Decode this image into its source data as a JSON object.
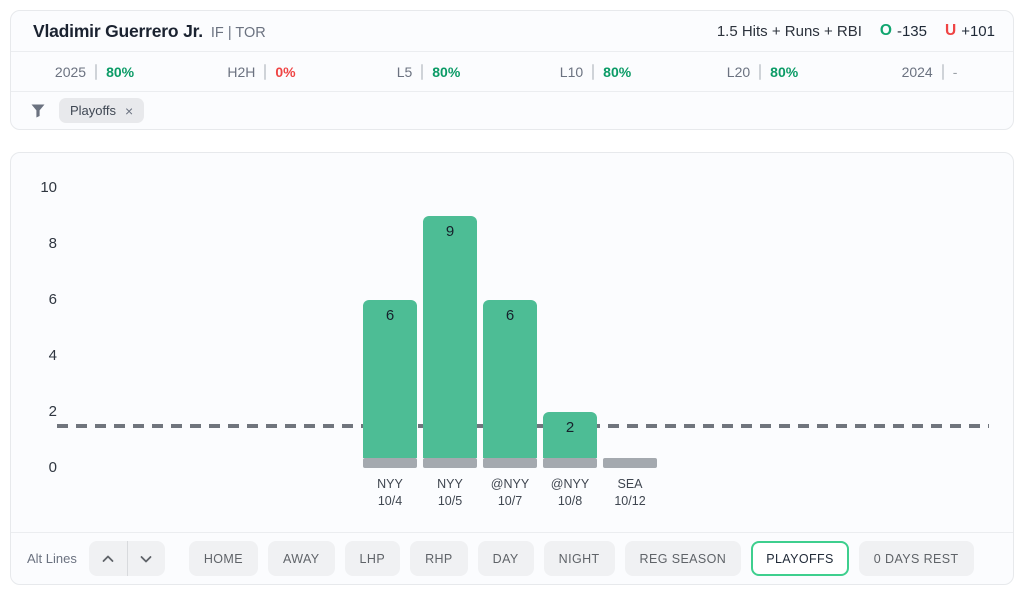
{
  "header": {
    "player_name": "Vladimir Guerrero Jr.",
    "position_team": "IF | TOR",
    "prop_label": "1.5 Hits + Runs + RBI",
    "over": {
      "symbol": "O",
      "odds": "-135"
    },
    "under": {
      "symbol": "U",
      "odds": "+101"
    }
  },
  "stats": [
    {
      "label": "2025",
      "value": "80%",
      "status": "positive"
    },
    {
      "label": "H2H",
      "value": "0%",
      "status": "negative"
    },
    {
      "label": "L5",
      "value": "80%",
      "status": "positive"
    },
    {
      "label": "L10",
      "value": "80%",
      "status": "positive"
    },
    {
      "label": "L20",
      "value": "80%",
      "status": "positive"
    },
    {
      "label": "2024",
      "value": "-",
      "status": "neutral"
    }
  ],
  "filter_bar": {
    "chips": [
      {
        "label": "Playoffs",
        "close": "×"
      }
    ]
  },
  "chart_data": {
    "type": "bar",
    "title": "",
    "xlabel": "",
    "ylabel": "",
    "categories": [
      "NYY 10/4",
      "NYY 10/5",
      "@NYY 10/7",
      "@NYY 10/8",
      "SEA 10/12"
    ],
    "games": [
      {
        "opponent": "NYY",
        "date": "10/4",
        "value": 6
      },
      {
        "opponent": "NYY",
        "date": "10/5",
        "value": 9
      },
      {
        "opponent": "@NYY",
        "date": "10/7",
        "value": 6
      },
      {
        "opponent": "@NYY",
        "date": "10/8",
        "value": 2
      },
      {
        "opponent": "SEA",
        "date": "10/12",
        "value": 0
      }
    ],
    "values": [
      6,
      9,
      6,
      2,
      0
    ],
    "prop_line": 1.5,
    "yticks": [
      10,
      8,
      6,
      4,
      2,
      0
    ],
    "ylim": [
      0,
      10.5
    ],
    "grid": false,
    "legend": false,
    "bar_color": "#4dbd95",
    "zero_bar_color": "#a4a9af",
    "line_color": "#70757d"
  },
  "toolbar": {
    "alt_lines_label": "Alt Lines",
    "stepper": {
      "up_icon": "chevron-up",
      "down_icon": "chevron-down"
    },
    "buttons": [
      "HOME",
      "AWAY",
      "LHP",
      "RHP",
      "DAY",
      "NIGHT",
      "REG SEASON",
      "PLAYOFFS",
      "0 DAYS REST"
    ],
    "selected": "PLAYOFFS"
  },
  "colors": {
    "positive": "#0b9b66",
    "negative": "#ef4444",
    "neutral": "#9aa0a6",
    "over_accent": "#10a56f",
    "under_accent": "#ef4444",
    "selected_border": "#3ecf8e"
  }
}
